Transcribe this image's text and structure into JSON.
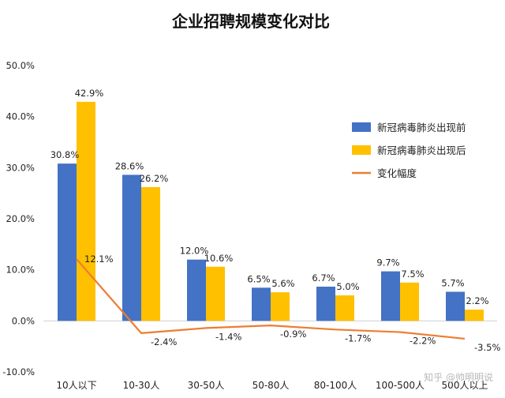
{
  "chart_data": {
    "type": "bar",
    "title": "企业招聘规模变化对比",
    "categories": [
      "10人以下",
      "10-30人",
      "30-50人",
      "50-80人",
      "80-100人",
      "100-500人",
      "500人以上"
    ],
    "series": [
      {
        "name": "新冠病毒肺炎出现前",
        "type": "bar",
        "color": "#4472C4",
        "values": [
          30.8,
          28.6,
          12.0,
          6.5,
          6.7,
          9.7,
          5.7
        ],
        "labels": [
          "30.8%",
          "28.6%",
          "12.0%",
          "6.5%",
          "6.7%",
          "9.7%",
          "5.7%"
        ]
      },
      {
        "name": "新冠病毒肺炎出现后",
        "type": "bar",
        "color": "#FFC000",
        "values": [
          42.9,
          26.2,
          10.6,
          5.6,
          5.0,
          7.5,
          2.2
        ],
        "labels": [
          "42.9%",
          "26.2%",
          "10.6%",
          "5.6%",
          "5.0%",
          "7.5%",
          "2.2%"
        ]
      },
      {
        "name": "变化幅度",
        "type": "line",
        "color": "#ED7D31",
        "values": [
          12.1,
          -2.4,
          -1.4,
          -0.9,
          -1.7,
          -2.2,
          -3.5
        ],
        "labels": [
          "12.1%",
          "-2.4%",
          "-1.4%",
          "-0.9%",
          "-1.7%",
          "-2.2%",
          "-3.5%"
        ]
      }
    ],
    "ylim": [
      -10,
      50
    ],
    "yticks": [
      -10,
      0,
      10,
      20,
      30,
      40,
      50
    ],
    "ytick_labels": [
      "-10.0%",
      "0.0%",
      "10.0%",
      "20.0%",
      "30.0%",
      "40.0%",
      "50.0%"
    ],
    "legend_position": "right",
    "grid": false
  },
  "watermark": "知乎 @帅明明说"
}
